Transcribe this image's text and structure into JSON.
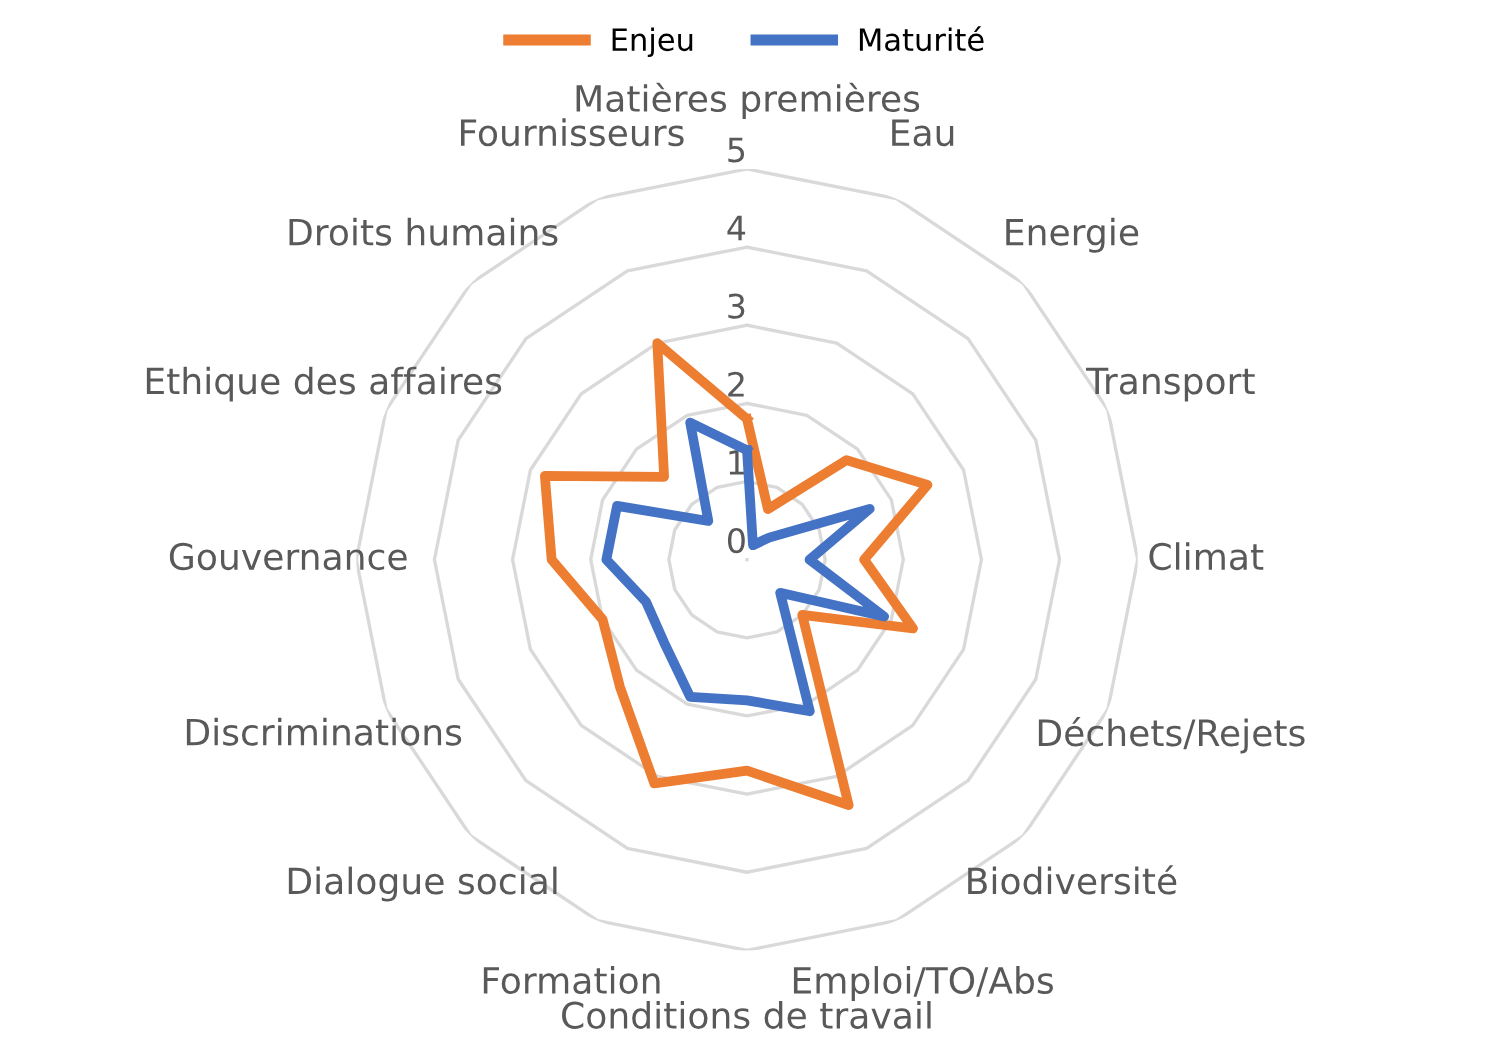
{
  "chart_data": {
    "type": "radar",
    "categories": [
      "Matières premières",
      "Eau",
      "Energie",
      "Transport",
      "Climat",
      "Déchets/Rejets",
      "Biodiversité",
      "Emploi/TO/Abs",
      "Conditions de travail",
      "Formation",
      "Dialogue social",
      "Discriminations",
      "Gouvernance",
      "Ethique des affaires",
      "Droits humains",
      "Fournisseurs"
    ],
    "series": [
      {
        "name": "Enjeu",
        "color": "#ed7d31",
        "values": [
          1.8,
          0.7,
          1.8,
          2.5,
          1.5,
          2.3,
          1.0,
          3.4,
          2.7,
          3.1,
          2.3,
          2.0,
          2.5,
          2.8,
          1.5,
          3.0
        ]
      },
      {
        "name": "Maturité",
        "color": "#4472c4",
        "values": [
          1.4,
          0.2,
          0.4,
          1.7,
          0.8,
          1.9,
          0.6,
          2.1,
          1.8,
          1.9,
          1.5,
          1.4,
          1.8,
          1.8,
          0.7,
          1.9
        ]
      }
    ],
    "ylim": [
      0,
      5
    ],
    "yticks": [
      0,
      1,
      2,
      3,
      4,
      5
    ],
    "grid": true,
    "legend": "top",
    "marker": "none",
    "line_style": "solid"
  }
}
